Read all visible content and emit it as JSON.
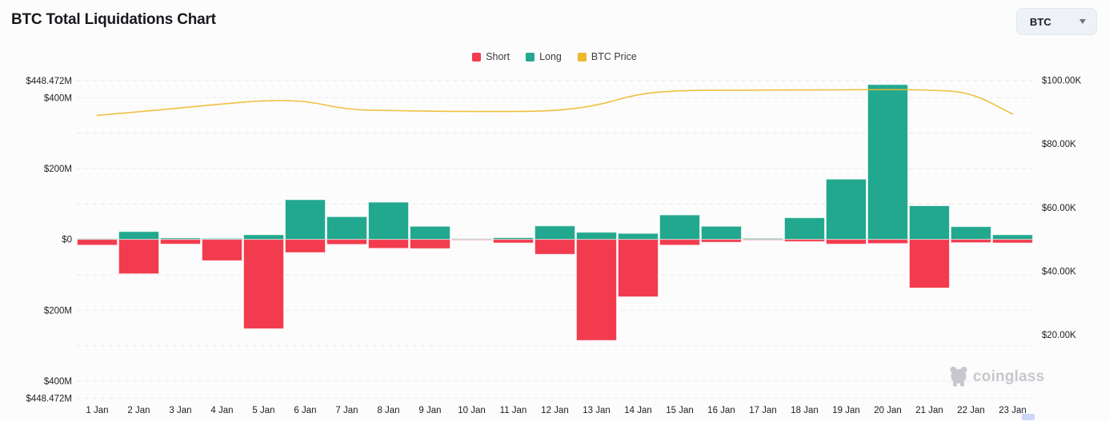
{
  "page": {
    "title": "BTC Total Liquidations Chart"
  },
  "header": {
    "symbol_select": {
      "value": "BTC"
    }
  },
  "watermark": {
    "brand": "coinglass"
  },
  "chart_data": {
    "type": "bar",
    "subtype": "stacked-diverging-bars-with-line",
    "title": "BTC Total Liquidations Chart",
    "categories": [
      "1 Jan",
      "2 Jan",
      "3 Jan",
      "4 Jan",
      "5 Jan",
      "6 Jan",
      "7 Jan",
      "8 Jan",
      "9 Jan",
      "10 Jan",
      "11 Jan",
      "12 Jan",
      "13 Jan",
      "14 Jan",
      "15 Jan",
      "16 Jan",
      "17 Jan",
      "18 Jan",
      "19 Jan",
      "20 Jan",
      "21 Jan",
      "22 Jan",
      "23 Jan"
    ],
    "legend": [
      "Short",
      "Long",
      "BTC Price"
    ],
    "legend_position": "top-center",
    "series": [
      {
        "name": "Short",
        "type": "bar",
        "side": "below-zero",
        "axis": "left",
        "unit": "$M",
        "color": "#F23B4E",
        "values": [
          16,
          97,
          13,
          60,
          252,
          37,
          14,
          25,
          26,
          1,
          10,
          42,
          285,
          162,
          16,
          8,
          1.5,
          6,
          13,
          11.5,
          137,
          9,
          10
        ]
      },
      {
        "name": "Long",
        "type": "bar",
        "side": "above-zero",
        "axis": "left",
        "unit": "$M",
        "color": "#22A88F",
        "values": [
          2,
          22,
          4,
          3,
          13,
          112,
          64,
          105,
          37,
          2,
          5,
          38,
          20,
          17,
          69,
          37,
          3,
          61,
          170,
          437,
          95,
          36,
          13
        ]
      },
      {
        "name": "BTC Price",
        "type": "line",
        "axis": "right",
        "unit": "$K",
        "color": "#EEB92D",
        "values": [
          89.0,
          90.1,
          91.3,
          92.6,
          93.7,
          93.6,
          90.8,
          90.5,
          90.3,
          90.2,
          90.2,
          90.4,
          92.0,
          95.8,
          96.8,
          96.9,
          96.9,
          97.0,
          97.0,
          97.1,
          97.0,
          96.2,
          89.4
        ]
      }
    ],
    "left_axis": {
      "ylim": [
        -448.472,
        448.472
      ],
      "ticks": [
        {
          "label": "$448.472M",
          "value": 448.472
        },
        {
          "label": "$400M",
          "value": 400
        },
        {
          "label": "$200M",
          "value": 200
        },
        {
          "label": "$0",
          "value": 0
        },
        {
          "label": "$200M",
          "value": -200
        },
        {
          "label": "$400M",
          "value": -400
        },
        {
          "label": "$448.472M",
          "value": -448.472
        }
      ]
    },
    "right_axis": {
      "ylim": [
        0,
        112.6
      ],
      "ticks": [
        {
          "label": "$100.00K",
          "value": 100
        },
        {
          "label": "$80.00K",
          "value": 80
        },
        {
          "label": "$60.00K",
          "value": 60
        },
        {
          "label": "$40.00K",
          "value": 40
        },
        {
          "label": "$20.00K",
          "value": 20
        }
      ]
    },
    "grid": {
      "dashed_values_m": [
        448.472,
        400,
        300,
        200,
        100,
        -100,
        -200,
        -300,
        -400,
        -448.472
      ],
      "zero_line_m": 0
    }
  }
}
